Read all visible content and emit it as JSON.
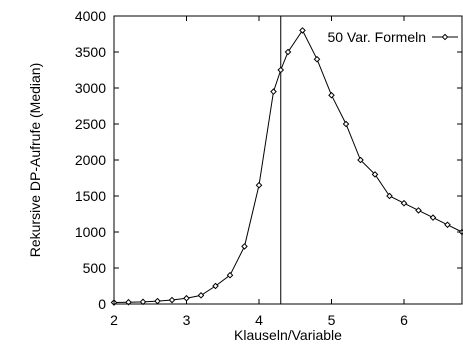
{
  "chart_data": {
    "type": "line",
    "title": "",
    "xlabel": "Klauseln/Variable",
    "ylabel": "Rekursive DP-Aufrufe (Median)",
    "xlim": [
      2,
      6.8
    ],
    "ylim": [
      0,
      4000
    ],
    "x_ticks": [
      2,
      3,
      4,
      5,
      6
    ],
    "x_tick_labels": [
      "2",
      "3",
      "4",
      "5",
      "6"
    ],
    "y_ticks": [
      0,
      500,
      1000,
      1500,
      2000,
      2500,
      3000,
      3500,
      4000
    ],
    "y_tick_labels": [
      "0",
      "500",
      "1000",
      "1500",
      "2000",
      "2500",
      "3000",
      "3500",
      "4000"
    ],
    "grid": false,
    "legend_position": "top-right",
    "vertical_line_x": 4.3,
    "series": [
      {
        "name": "50 Var. Formeln",
        "color": "#000000",
        "marker": "diamond",
        "x": [
          2.0,
          2.2,
          2.4,
          2.6,
          2.8,
          3.0,
          3.2,
          3.4,
          3.6,
          3.8,
          4.0,
          4.2,
          4.3,
          4.4,
          4.6,
          4.8,
          5.0,
          5.2,
          5.4,
          5.6,
          5.8,
          6.0,
          6.2,
          6.4,
          6.6,
          6.8
        ],
        "y": [
          20,
          25,
          30,
          40,
          55,
          80,
          120,
          250,
          400,
          800,
          1650,
          2950,
          3250,
          3500,
          3800,
          3400,
          2900,
          2500,
          2000,
          1800,
          1500,
          1400,
          1300,
          1200,
          1100,
          1000
        ]
      }
    ]
  }
}
